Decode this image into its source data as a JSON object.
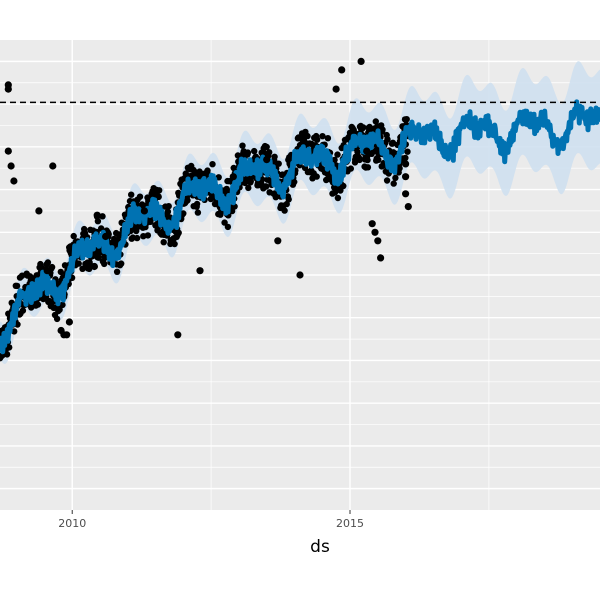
{
  "chart_data": {
    "type": "scatter",
    "title": "",
    "xlabel": "ds",
    "ylabel": "",
    "x_ticks": [
      2010,
      2015
    ],
    "xlim": [
      2008.7,
      2019.5
    ],
    "ylim": [
      -0.05,
      1.05
    ],
    "cap": 0.904,
    "grid": true,
    "legend": "none",
    "colors": {
      "panel": "#ebebeb",
      "grid": "#ffffff",
      "forecast": "#0072b2",
      "interval": "#cfe0ef",
      "points": "#000000",
      "cap_line": "#000000"
    },
    "series": [
      {
        "kind": "observed",
        "x_range": [
          2008.7,
          2016.05
        ],
        "trend": [
          [
            2008.7,
            0.38
          ],
          [
            2009.5,
            0.47
          ],
          [
            2010.5,
            0.57
          ],
          [
            2011.5,
            0.64
          ],
          [
            2012.5,
            0.7
          ],
          [
            2013.5,
            0.74
          ],
          [
            2014.5,
            0.77
          ],
          [
            2015.5,
            0.8
          ],
          [
            2016.05,
            0.81
          ]
        ]
      },
      {
        "kind": "forecast",
        "x_range": [
          2008.7,
          2019.5
        ],
        "trend": [
          [
            2016.05,
            0.82
          ],
          [
            2017,
            0.83
          ],
          [
            2018,
            0.84
          ],
          [
            2019,
            0.85
          ],
          [
            2019.5,
            0.855
          ]
        ]
      }
    ],
    "outliers": [
      [
        2008.85,
        0.945
      ],
      [
        2008.85,
        0.935
      ],
      [
        2008.85,
        0.79
      ],
      [
        2008.9,
        0.755
      ],
      [
        2008.95,
        0.72
      ],
      [
        2009.4,
        0.65
      ],
      [
        2009.55,
        0.51
      ],
      [
        2009.65,
        0.755
      ],
      [
        2009.8,
        0.37
      ],
      [
        2009.85,
        0.36
      ],
      [
        2009.9,
        0.36
      ],
      [
        2009.95,
        0.39
      ],
      [
        2010.4,
        0.52
      ],
      [
        2010.45,
        0.64
      ],
      [
        2010.6,
        0.59
      ],
      [
        2011.3,
        0.65
      ],
      [
        2011.9,
        0.36
      ],
      [
        2012.3,
        0.51
      ],
      [
        2012.9,
        0.73
      ],
      [
        2013.5,
        0.77
      ],
      [
        2013.7,
        0.58
      ],
      [
        2014.1,
        0.5
      ],
      [
        2014.75,
        0.935
      ],
      [
        2014.85,
        0.98
      ],
      [
        2015.1,
        0.77
      ],
      [
        2015.2,
        1.0
      ],
      [
        2015.3,
        0.79
      ],
      [
        2015.4,
        0.62
      ],
      [
        2015.45,
        0.6
      ],
      [
        2015.5,
        0.58
      ],
      [
        2015.55,
        0.54
      ],
      [
        2016.0,
        0.76
      ],
      [
        2016.0,
        0.73
      ],
      [
        2016.0,
        0.69
      ],
      [
        2016.05,
        0.66
      ]
    ]
  }
}
